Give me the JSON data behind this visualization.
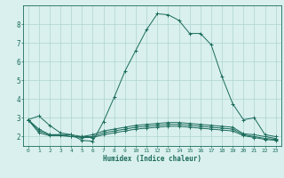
{
  "title": "",
  "xlabel": "Humidex (Indice chaleur)",
  "ylabel": "",
  "bg_color": "#d9f0ee",
  "grid_color": "#aed4d0",
  "line_color": "#1a6b5a",
  "xlim": [
    -0.5,
    23.5
  ],
  "ylim": [
    1.5,
    9.0
  ],
  "xticks": [
    0,
    1,
    2,
    3,
    4,
    5,
    6,
    7,
    8,
    9,
    10,
    11,
    12,
    13,
    14,
    15,
    16,
    17,
    18,
    19,
    20,
    21,
    22,
    23
  ],
  "yticks": [
    2,
    3,
    4,
    5,
    6,
    7,
    8
  ],
  "series": [
    [
      2.9,
      3.1,
      2.6,
      2.2,
      2.1,
      1.8,
      1.75,
      2.8,
      4.1,
      5.5,
      6.6,
      7.7,
      8.55,
      8.5,
      8.2,
      7.5,
      7.5,
      6.9,
      5.2,
      3.75,
      2.9,
      3.0,
      2.1,
      2.0
    ],
    [
      2.9,
      2.4,
      2.1,
      2.1,
      2.1,
      2.0,
      2.1,
      2.3,
      2.4,
      2.5,
      2.6,
      2.65,
      2.7,
      2.75,
      2.75,
      2.7,
      2.65,
      2.6,
      2.55,
      2.5,
      2.15,
      2.1,
      2.0,
      1.9
    ],
    [
      2.9,
      2.3,
      2.1,
      2.1,
      2.0,
      2.0,
      2.0,
      2.2,
      2.3,
      2.4,
      2.5,
      2.55,
      2.6,
      2.65,
      2.65,
      2.6,
      2.55,
      2.5,
      2.45,
      2.4,
      2.1,
      2.0,
      1.9,
      1.85
    ],
    [
      2.9,
      2.2,
      2.05,
      2.05,
      2.0,
      1.95,
      1.95,
      2.1,
      2.2,
      2.3,
      2.4,
      2.45,
      2.5,
      2.55,
      2.55,
      2.5,
      2.45,
      2.4,
      2.35,
      2.3,
      2.05,
      1.95,
      1.85,
      1.8
    ]
  ]
}
